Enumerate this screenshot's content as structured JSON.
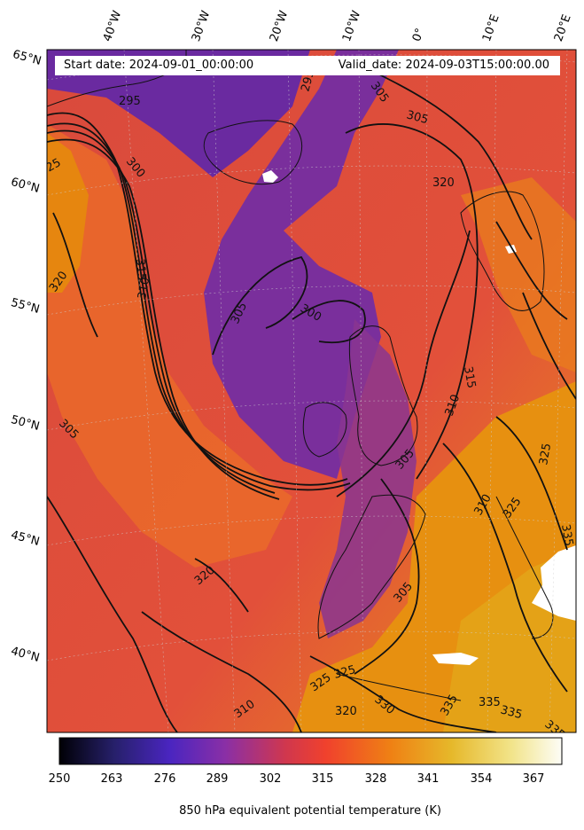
{
  "header": {
    "start_date": "Start date: 2024-09-01_00:00:00",
    "valid_date": "Valid_date: 2024-09-03T15:00:00.00"
  },
  "graticule": {
    "latitudes": [
      "65°N",
      "60°N",
      "55°N",
      "50°N",
      "45°N",
      "40°N"
    ],
    "longitudes": [
      "40°W",
      "30°W",
      "20°W",
      "10°W",
      "0°",
      "10°E",
      "20°E"
    ]
  },
  "contour_labels": [
    "295",
    "295",
    "305",
    "305",
    "300",
    "300",
    "310",
    "315",
    "320",
    "325",
    "330",
    "335",
    "305",
    "320",
    "325",
    "310",
    "315",
    "305",
    "310",
    "320",
    "325",
    "330",
    "335",
    "335",
    "320"
  ],
  "colorbar": {
    "ticks": [
      "250",
      "263",
      "276",
      "289",
      "302",
      "315",
      "328",
      "341",
      "354",
      "367"
    ],
    "label": "850 hPa equivalent potential temperature (K)",
    "colormap": "CMRmap-like",
    "stops": [
      "#000005",
      "#27206b",
      "#4a25c0",
      "#8a2fa6",
      "#d0374e",
      "#f0412d",
      "#ef8114",
      "#e6b82a",
      "#f2e48a",
      "#fdfdf7"
    ]
  },
  "map": {
    "projection": "Lambert conformal",
    "field": "850 hPa equivalent potential temperature",
    "units": "K",
    "colors": {
      "cold": "#6e2a9c",
      "mid": "#d5404a",
      "warm": "#ef6a25",
      "hot": "#e89a10",
      "contour": "#111111",
      "coast": "#111111",
      "missing": "#ffffff"
    }
  }
}
